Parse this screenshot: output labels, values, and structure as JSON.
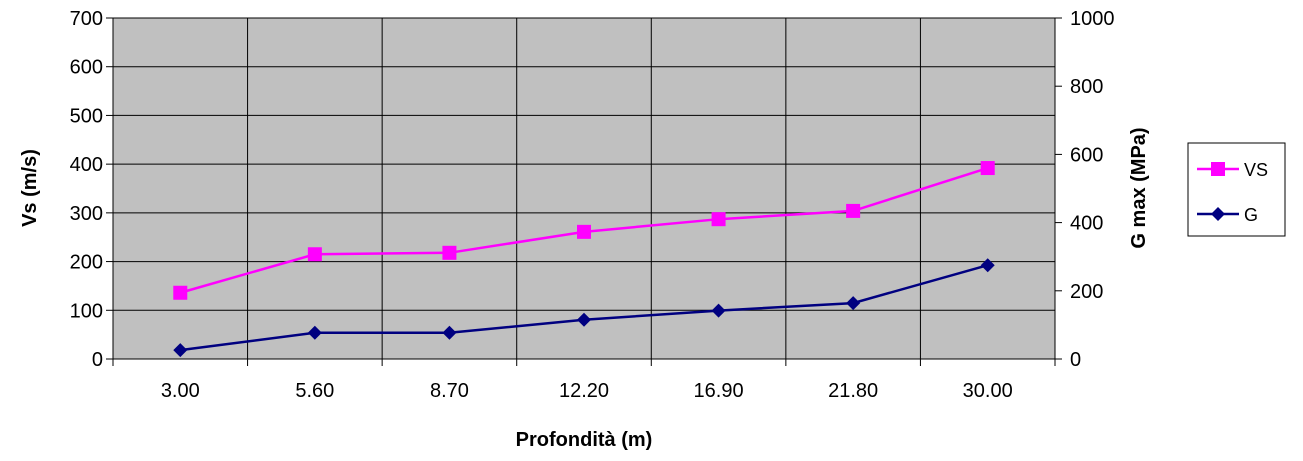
{
  "chart_data": {
    "type": "line",
    "categories": [
      "3.00",
      "5.60",
      "8.70",
      "12.20",
      "16.90",
      "21.80",
      "30.00"
    ],
    "xlabel": "Profondità (m)",
    "ylabel": "Vs (m/s)",
    "y2label": "G max (MPa)",
    "ylim": [
      0,
      700
    ],
    "y_ticks": [
      "0",
      "100",
      "200",
      "300",
      "400",
      "500",
      "600",
      "700"
    ],
    "y2lim": [
      0,
      1000
    ],
    "y2_ticks": [
      "0",
      "200",
      "400",
      "600",
      "800",
      "1000"
    ],
    "grid": true,
    "plot_background": "#c0c0c0",
    "legend_position": "right",
    "series": [
      {
        "name": "VS",
        "axis": "left",
        "color": "#ff00ff",
        "marker": "square",
        "values": [
          136,
          215,
          218,
          261,
          287,
          304,
          392
        ]
      },
      {
        "name": "G",
        "axis": "right",
        "color": "#000080",
        "marker": "diamond",
        "values": [
          26,
          77,
          77,
          115,
          142,
          164,
          275
        ]
      }
    ]
  }
}
